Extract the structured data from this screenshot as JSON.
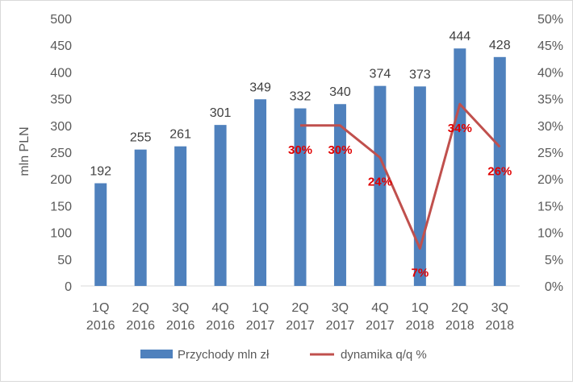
{
  "chart_data": {
    "type": "bar",
    "categories": [
      [
        "1Q",
        "2016"
      ],
      [
        "2Q",
        "2016"
      ],
      [
        "3Q",
        "2016"
      ],
      [
        "4Q",
        "2016"
      ],
      [
        "1Q",
        "2017"
      ],
      [
        "2Q",
        "2017"
      ],
      [
        "3Q",
        "2017"
      ],
      [
        "4Q",
        "2017"
      ],
      [
        "1Q",
        "2018"
      ],
      [
        "2Q",
        "2018"
      ],
      [
        "3Q",
        "2018"
      ]
    ],
    "ylabel": "mln PLN",
    "ylim": [
      0,
      500
    ],
    "y_ticks": [
      "0",
      "50",
      "100",
      "150",
      "200",
      "250",
      "300",
      "350",
      "400",
      "450",
      "500"
    ],
    "y2lim": [
      0,
      50
    ],
    "y2_ticks": [
      "0%",
      "5%",
      "10%",
      "15%",
      "20%",
      "25%",
      "30%",
      "35%",
      "40%",
      "45%",
      "50%"
    ],
    "grid": false,
    "legend_position": "bottom",
    "series": [
      {
        "name": "Przychody mln zł",
        "type": "bar",
        "axis": "left",
        "color": "#4f81bd",
        "values": [
          192,
          255,
          261,
          301,
          349,
          332,
          340,
          374,
          373,
          444,
          428
        ],
        "labels": [
          "192",
          "255",
          "261",
          "301",
          "349",
          "332",
          "340",
          "374",
          "373",
          "444",
          "428"
        ]
      },
      {
        "name": "dynamika q/q %",
        "type": "line",
        "axis": "right",
        "color": "#c0504d",
        "label_color": "#e00000",
        "values": [
          null,
          null,
          null,
          null,
          null,
          30,
          30,
          24,
          7,
          34,
          26
        ],
        "labels": [
          null,
          null,
          null,
          null,
          null,
          "30%",
          "30%",
          "24%",
          "7%",
          "34%",
          "26%"
        ]
      }
    ]
  }
}
